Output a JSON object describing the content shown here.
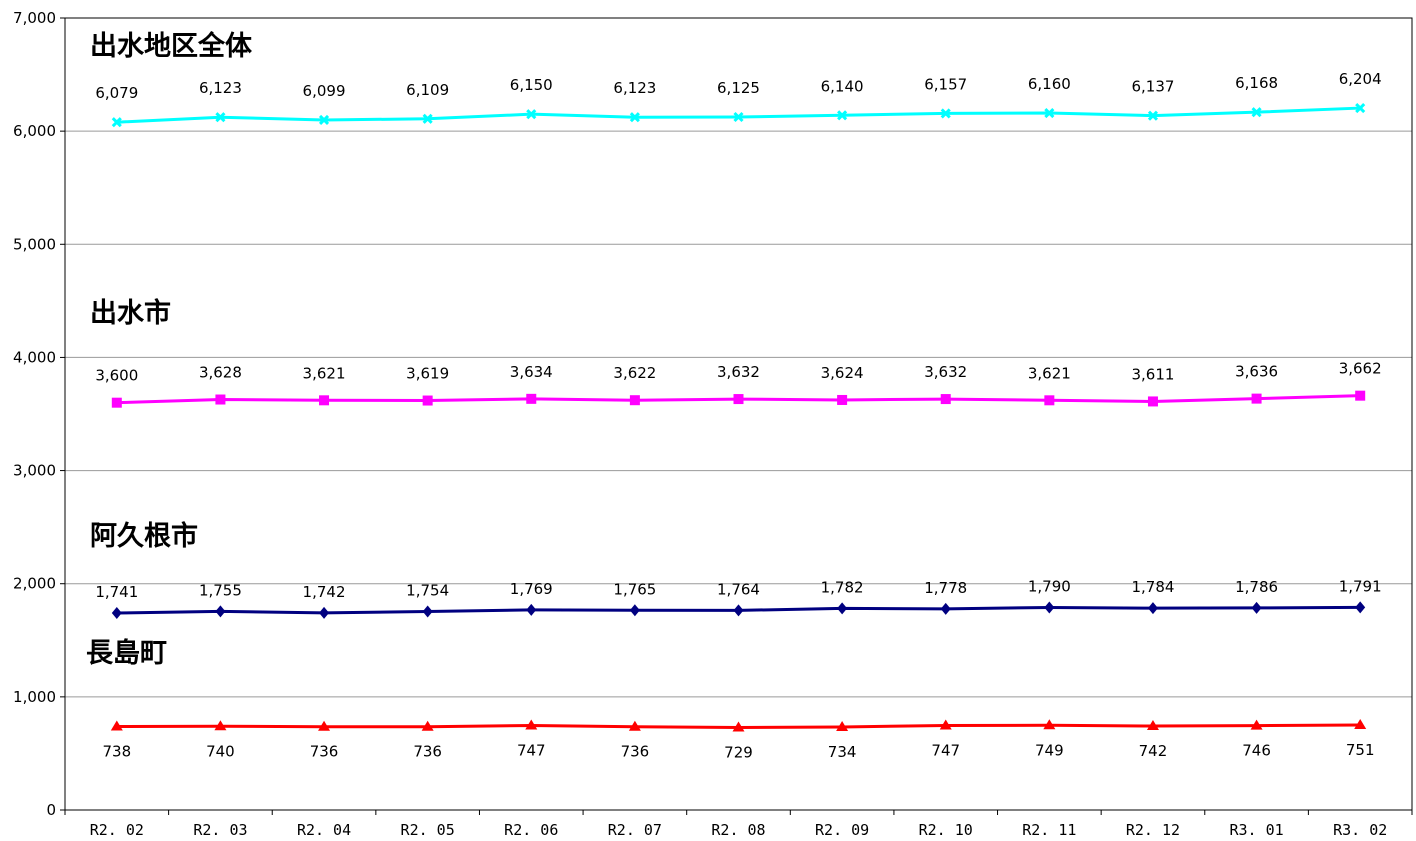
{
  "chart_data": {
    "type": "line",
    "categories": [
      "R2. 02",
      "R2. 03",
      "R2. 04",
      "R2. 05",
      "R2. 06",
      "R2. 07",
      "R2. 08",
      "R2. 09",
      "R2. 10",
      "R2. 11",
      "R2. 12",
      "R3. 01",
      "R3. 02"
    ],
    "yticks": [
      "0",
      "1,000",
      "2,000",
      "3,000",
      "4,000",
      "5,000",
      "6,000",
      "7,000"
    ],
    "ylim": [
      0,
      7000
    ],
    "grid": true,
    "legend": "none",
    "series": [
      {
        "name": "出水地区全体",
        "color": "#00ffff",
        "marker": "x",
        "values": [
          6079,
          6123,
          6099,
          6109,
          6150,
          6123,
          6125,
          6140,
          6157,
          6160,
          6137,
          6168,
          6204
        ],
        "labels": [
          "6,079",
          "6,123",
          "6,099",
          "6,109",
          "6,150",
          "6,123",
          "6,125",
          "6,140",
          "6,157",
          "6,160",
          "6,137",
          "6,168",
          "6,204"
        ]
      },
      {
        "name": "出水市",
        "color": "#ff00ff",
        "marker": "square",
        "values": [
          3600,
          3628,
          3621,
          3619,
          3634,
          3622,
          3632,
          3624,
          3632,
          3621,
          3611,
          3636,
          3662
        ],
        "labels": [
          "3,600",
          "3,628",
          "3,621",
          "3,619",
          "3,634",
          "3,622",
          "3,632",
          "3,624",
          "3,632",
          "3,621",
          "3,611",
          "3,636",
          "3,662"
        ]
      },
      {
        "name": "阿久根市",
        "color": "#000080",
        "marker": "diamond",
        "values": [
          1741,
          1755,
          1742,
          1754,
          1769,
          1765,
          1764,
          1782,
          1778,
          1790,
          1784,
          1786,
          1791
        ],
        "labels": [
          "1,741",
          "1,755",
          "1,742",
          "1,754",
          "1,769",
          "1,765",
          "1,764",
          "1,782",
          "1,778",
          "1,790",
          "1,784",
          "1,786",
          "1,791"
        ]
      },
      {
        "name": "長島町",
        "color": "#ff0000",
        "marker": "triangle",
        "values": [
          738,
          740,
          736,
          736,
          747,
          736,
          729,
          734,
          747,
          749,
          742,
          746,
          751
        ],
        "labels": [
          "738",
          "740",
          "736",
          "736",
          "747",
          "736",
          "729",
          "734",
          "747",
          "749",
          "742",
          "746",
          "751"
        ]
      }
    ]
  }
}
